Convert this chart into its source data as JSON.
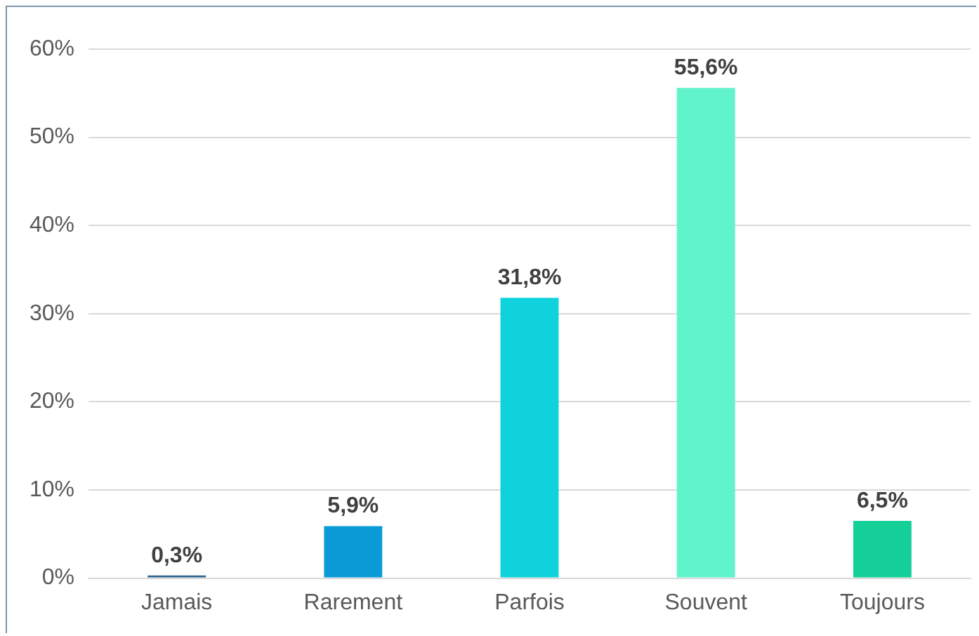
{
  "chart_data": {
    "type": "bar",
    "categories": [
      "Jamais",
      "Rarement",
      "Parfois",
      "Souvent",
      "Toujours"
    ],
    "values": [
      0.3,
      5.9,
      31.8,
      55.6,
      6.5
    ],
    "colors": [
      "#2f6390",
      "#0a9bd7",
      "#0fd2dc",
      "#60f3cc",
      "#14d098"
    ],
    "value_labels": [
      "0,3%",
      "5,9%",
      "31,8%",
      "55,6%",
      "6,5%"
    ],
    "ylim": [
      0,
      60
    ],
    "yticks": [
      {
        "value": 0,
        "label": "0%"
      },
      {
        "value": 10,
        "label": "10%"
      },
      {
        "value": 20,
        "label": "20%"
      },
      {
        "value": 30,
        "label": "30%"
      },
      {
        "value": 40,
        "label": "40%"
      },
      {
        "value": 50,
        "label": "50%"
      },
      {
        "value": 60,
        "label": "60%"
      }
    ],
    "grid": "y",
    "legend": false
  }
}
